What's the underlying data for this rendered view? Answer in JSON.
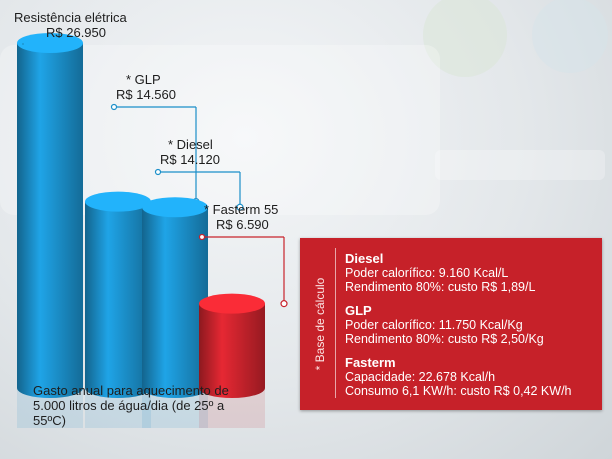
{
  "chart_data": {
    "type": "bar",
    "categories": [
      "Resistência elétrica",
      "* GLP",
      "* Diesel",
      "* Fasterm 55"
    ],
    "values": [
      26950,
      14560,
      14120,
      6590
    ],
    "value_labels": [
      "R$ 26.950",
      "R$ 14.560",
      "R$ 14.120",
      "R$ 6.590"
    ],
    "ylim": [
      0,
      26950
    ],
    "colors": [
      "#1b8fc9",
      "#1b8fc9",
      "#1b8fc9",
      "#c8232c"
    ],
    "caption": "Gasto anual para aquecimento de 5.000 litros de água/dia (de 25º a 55ºC)"
  },
  "info_box": {
    "side_label": "* Base de cálculo",
    "blocks": [
      {
        "title": "Diesel",
        "lines": [
          "Poder calorífico: 9.160 Kcal/L",
          "Rendimento 80%: custo R$ 1,89/L"
        ]
      },
      {
        "title": "GLP",
        "lines": [
          "Poder calorífico: 11.750 Kcal/Kg",
          "Rendimento 80%: custo R$ 2,50/Kg"
        ]
      },
      {
        "title": "Fasterm",
        "lines": [
          "Capacidade: 22.678 Kcal/h",
          "Consumo 6,1 KW/h: custo R$ 0,42 KW/h"
        ]
      }
    ]
  }
}
